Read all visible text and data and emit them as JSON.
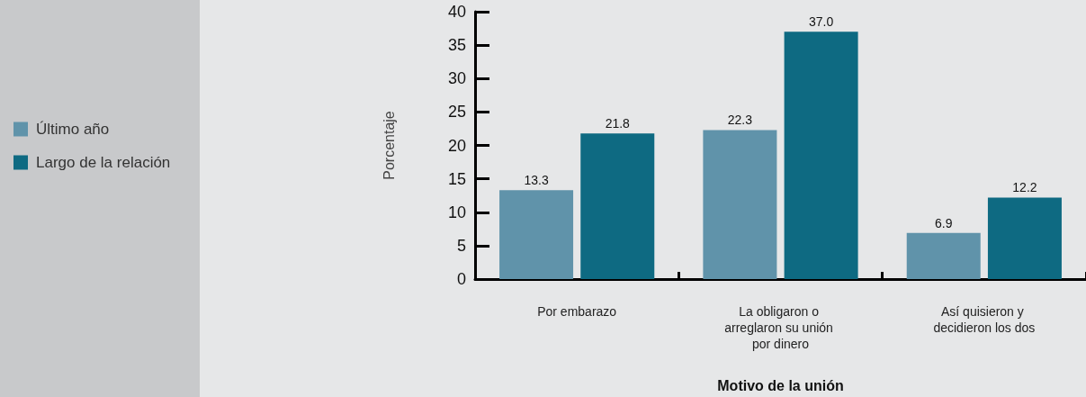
{
  "chart_data": {
    "type": "bar",
    "xlabel": "Motivo de la unión",
    "ylabel": "Porcentaje",
    "categories": [
      "Por embarazo",
      "La obligaron o arreglaron su unión por dinero",
      "Así quisieron y decidieron los dos"
    ],
    "series": [
      {
        "name": "Último año",
        "color": "#6093aa",
        "values": [
          13.3,
          22.3,
          6.9
        ],
        "value_labels": [
          "13.3",
          "22.3",
          "6.9"
        ]
      },
      {
        "name": "Largo de la relación",
        "color": "#0e6a82",
        "values": [
          21.8,
          37.0,
          12.2
        ],
        "value_labels": [
          "21.8",
          "37.0",
          "12.2"
        ]
      }
    ],
    "ylim": [
      0,
      40
    ],
    "yticks": [
      0,
      5,
      10,
      15,
      20,
      25,
      30,
      35,
      40
    ],
    "grid": false,
    "legend": "left"
  }
}
